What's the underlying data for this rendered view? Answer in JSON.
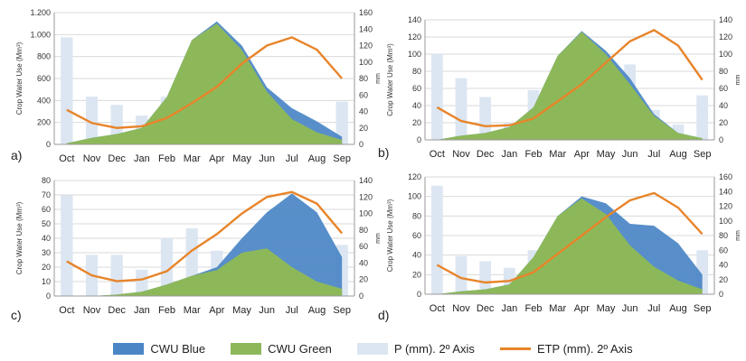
{
  "colors": {
    "cwu_blue": "#4a86c5",
    "cwu_green": "#8db85a",
    "precip": "#dce6f2",
    "etp": "#e8842a",
    "axis": "#9a9a9a",
    "grid": "#d9d9d9"
  },
  "legend": [
    {
      "label": "CWU Blue",
      "kind": "area",
      "color_key": "cwu_blue"
    },
    {
      "label": "CWU Green",
      "kind": "area",
      "color_key": "cwu_green"
    },
    {
      "label": "P (mm). 2º Axis",
      "kind": "bar",
      "color_key": "precip"
    },
    {
      "label": "ETP (mm). 2º Axis",
      "kind": "line",
      "color_key": "etp"
    }
  ],
  "chart_data": [
    {
      "type": "area",
      "panel_label": "a)",
      "ylabel": "Crop Water Use (Mm³)",
      "y2label": "mm",
      "categories": [
        "Oct",
        "Nov",
        "Dec",
        "Jan",
        "Feb",
        "Mar",
        "Apr",
        "May",
        "Jun",
        "Jul",
        "Aug",
        "Sep"
      ],
      "ylim": [
        0,
        1200
      ],
      "yticks": [
        0,
        200,
        400,
        600,
        800,
        1000,
        1200
      ],
      "ytick_labels": [
        "0",
        "200",
        "400",
        "600",
        "800",
        "1.000",
        "1.200"
      ],
      "y2lim": [
        0,
        160
      ],
      "y2ticks": [
        0,
        20,
        40,
        60,
        80,
        100,
        120,
        140,
        160
      ],
      "series": [
        {
          "name": "CWU Green",
          "values": [
            10,
            60,
            95,
            150,
            430,
            950,
            1100,
            860,
            480,
            230,
            110,
            40
          ]
        },
        {
          "name": "CWU Blue",
          "values": [
            10,
            60,
            95,
            150,
            430,
            950,
            1120,
            900,
            520,
            330,
            210,
            70
          ]
        },
        {
          "name": "P (mm). 2º Axis",
          "values": [
            130,
            58,
            48,
            35,
            58,
            70,
            52,
            26,
            52,
            22,
            17,
            52
          ]
        },
        {
          "name": "ETP (mm). 2º Axis",
          "values": [
            42,
            26,
            20,
            22,
            32,
            50,
            70,
            98,
            120,
            130,
            115,
            80
          ]
        }
      ]
    },
    {
      "type": "area",
      "panel_label": "b)",
      "ylabel": "Crop Water Use (Mm³)",
      "y2label": "mm",
      "categories": [
        "Oct",
        "Nov",
        "Dec",
        "Jan",
        "Feb",
        "Mar",
        "Apr",
        "May",
        "Jun",
        "Jul",
        "Aug",
        "Sep"
      ],
      "ylim": [
        0,
        140
      ],
      "yticks": [
        0,
        20,
        40,
        60,
        80,
        100,
        120,
        140
      ],
      "ytick_labels": [
        "0",
        "20",
        "40",
        "60",
        "80",
        "100",
        "120",
        "140"
      ],
      "y2lim": [
        0,
        140
      ],
      "y2ticks": [
        0,
        20,
        40,
        60,
        80,
        100,
        120,
        140
      ],
      "series": [
        {
          "name": "CWU Green",
          "values": [
            0,
            5,
            8,
            15,
            38,
            98,
            126,
            100,
            65,
            28,
            8,
            2
          ]
        },
        {
          "name": "CWU Blue",
          "values": [
            0,
            5,
            8,
            15,
            38,
            98,
            127,
            104,
            72,
            30,
            8,
            2
          ]
        },
        {
          "name": "P (mm). 2º Axis",
          "values": [
            100,
            72,
            50,
            20,
            58,
            60,
            44,
            38,
            88,
            35,
            18,
            52
          ]
        },
        {
          "name": "ETP (mm). 2º Axis",
          "values": [
            38,
            22,
            16,
            17,
            25,
            45,
            65,
            90,
            115,
            128,
            110,
            70
          ]
        }
      ]
    },
    {
      "type": "area",
      "panel_label": "c)",
      "ylabel": "Crop Water Use (Mm³)",
      "y2label": "mm",
      "categories": [
        "Oct",
        "Nov",
        "Dec",
        "Jan",
        "Feb",
        "Mar",
        "Apr",
        "May",
        "Jun",
        "Jul",
        "Aug",
        "Sep"
      ],
      "ylim": [
        0,
        80
      ],
      "yticks": [
        0,
        10,
        20,
        30,
        40,
        50,
        60,
        70,
        80
      ],
      "ytick_labels": [
        "0",
        "10",
        "20",
        "30",
        "40",
        "50",
        "60",
        "70",
        "80"
      ],
      "y2lim": [
        0,
        140
      ],
      "y2ticks": [
        0,
        20,
        40,
        60,
        80,
        100,
        120,
        140
      ],
      "series": [
        {
          "name": "CWU Green",
          "values": [
            0,
            0,
            1,
            3,
            8,
            14,
            18,
            30,
            33,
            20,
            10,
            5
          ]
        },
        {
          "name": "CWU Blue",
          "values": [
            0,
            0,
            1,
            3,
            8,
            14,
            20,
            40,
            58,
            71,
            58,
            27
          ]
        },
        {
          "name": "P (mm). 2º Axis",
          "values": [
            122,
            50,
            50,
            32,
            70,
            82,
            55,
            32,
            44,
            36,
            20,
            62
          ]
        },
        {
          "name": "ETP (mm). 2º Axis",
          "values": [
            42,
            25,
            18,
            20,
            30,
            55,
            75,
            100,
            120,
            126,
            112,
            76
          ]
        }
      ]
    },
    {
      "type": "area",
      "panel_label": "d)",
      "ylabel": "Crop Water Use (Mm³)",
      "y2label": "mm",
      "categories": [
        "Oct",
        "Nov",
        "Dec",
        "Jan",
        "Feb",
        "Mar",
        "Apr",
        "May",
        "Jun",
        "Jul",
        "Aug",
        "Sep"
      ],
      "ylim": [
        0,
        120
      ],
      "yticks": [
        0,
        20,
        40,
        60,
        80,
        100,
        120
      ],
      "ytick_labels": [
        "0",
        "20",
        "40",
        "60",
        "80",
        "100",
        "120"
      ],
      "y2lim": [
        0,
        160
      ],
      "y2ticks": [
        0,
        20,
        40,
        60,
        80,
        100,
        120,
        140,
        160
      ],
      "series": [
        {
          "name": "CWU Green",
          "values": [
            0,
            3,
            5,
            10,
            38,
            80,
            98,
            82,
            50,
            28,
            14,
            5
          ]
        },
        {
          "name": "CWU Blue",
          "values": [
            0,
            3,
            5,
            10,
            38,
            80,
            100,
            93,
            72,
            70,
            52,
            20
          ]
        },
        {
          "name": "P (mm). 2º Axis",
          "values": [
            148,
            52,
            45,
            36,
            60,
            80,
            52,
            20,
            42,
            30,
            22,
            60
          ]
        },
        {
          "name": "ETP (mm). 2º Axis",
          "values": [
            40,
            22,
            16,
            18,
            30,
            55,
            80,
            105,
            128,
            138,
            118,
            82
          ]
        }
      ]
    }
  ]
}
